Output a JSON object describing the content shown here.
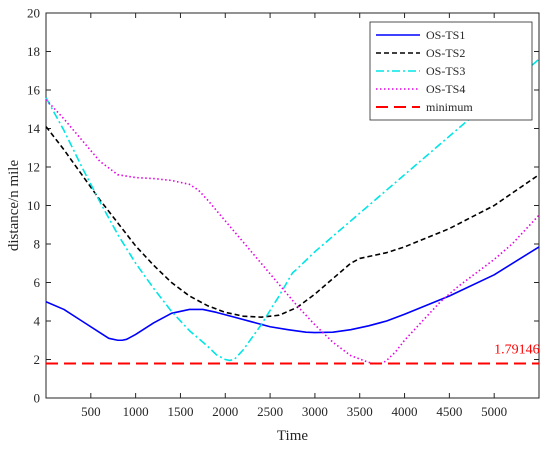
{
  "chart_data": {
    "type": "line",
    "xlabel": "Time",
    "ylabel": "distance/n mile",
    "xlim": [
      0,
      5500
    ],
    "ylim": [
      0,
      20
    ],
    "xticks": [
      500,
      1000,
      1500,
      2000,
      2500,
      3000,
      3500,
      4000,
      4500,
      5000
    ],
    "yticks": [
      0,
      2,
      4,
      6,
      8,
      10,
      12,
      14,
      16,
      18,
      20
    ],
    "grid": false,
    "legend_position": "top-right",
    "series": [
      {
        "name": "OS-TS1",
        "color": "#0000ff",
        "style": "solid",
        "x": [
          0,
          200,
          400,
          600,
          700,
          800,
          850,
          900,
          1000,
          1200,
          1400,
          1600,
          1750,
          1900,
          2100,
          2300,
          2500,
          2700,
          2900,
          3000,
          3200,
          3400,
          3600,
          3800,
          4000,
          4500,
          5000,
          5500
        ],
        "y": [
          5.0,
          4.6,
          4.0,
          3.4,
          3.1,
          3.0,
          3.0,
          3.05,
          3.3,
          3.9,
          4.4,
          4.6,
          4.6,
          4.45,
          4.2,
          3.95,
          3.7,
          3.55,
          3.42,
          3.4,
          3.42,
          3.55,
          3.75,
          4.0,
          4.35,
          5.3,
          6.4,
          7.85
        ]
      },
      {
        "name": "OS-TS2",
        "color": "#000000",
        "style": "dashed",
        "x": [
          0,
          200,
          400,
          600,
          800,
          1000,
          1200,
          1400,
          1600,
          1800,
          2000,
          2200,
          2400,
          2600,
          2800,
          3000,
          3200,
          3400,
          3500,
          3600,
          3800,
          4000,
          4500,
          5000,
          5500
        ],
        "y": [
          14.1,
          12.9,
          11.6,
          10.3,
          9.1,
          7.9,
          6.9,
          6.0,
          5.3,
          4.8,
          4.45,
          4.25,
          4.2,
          4.3,
          4.7,
          5.4,
          6.2,
          7.0,
          7.25,
          7.35,
          7.55,
          7.85,
          8.8,
          10.0,
          11.6
        ]
      },
      {
        "name": "OS-TS3",
        "color": "#00e5e5",
        "style": "dash-dot",
        "x": [
          0,
          200,
          400,
          600,
          800,
          1000,
          1200,
          1400,
          1600,
          1800,
          1900,
          2000,
          2050,
          2100,
          2200,
          2400,
          2600,
          2750,
          2800,
          3000,
          3500,
          4000,
          4500,
          5000,
          5500
        ],
        "y": [
          15.6,
          13.9,
          12.0,
          10.2,
          8.5,
          7.0,
          5.7,
          4.5,
          3.5,
          2.7,
          2.25,
          2.0,
          1.95,
          2.0,
          2.5,
          3.8,
          5.3,
          6.5,
          6.7,
          7.6,
          9.6,
          11.6,
          13.6,
          15.6,
          17.6
        ]
      },
      {
        "name": "OS-TS4",
        "color": "#e600e6",
        "style": "dotted",
        "x": [
          0,
          200,
          400,
          600,
          800,
          1000,
          1200,
          1400,
          1600,
          1700,
          1800,
          2000,
          2200,
          2400,
          2600,
          2800,
          3000,
          3200,
          3400,
          3600,
          3650,
          3700,
          3750,
          3800,
          3900,
          4000,
          4200,
          4400,
          4600,
          4800,
          5000,
          5200,
          5500
        ],
        "y": [
          15.5,
          14.5,
          13.4,
          12.3,
          11.6,
          11.45,
          11.4,
          11.3,
          11.1,
          10.8,
          10.3,
          9.2,
          8.1,
          7.0,
          5.9,
          4.8,
          3.8,
          2.9,
          2.2,
          1.85,
          1.8,
          1.79,
          1.8,
          1.95,
          2.4,
          3.0,
          4.0,
          5.0,
          5.8,
          6.5,
          7.2,
          8.0,
          9.5
        ]
      },
      {
        "name": "minimum",
        "color": "#ff0000",
        "style": "long-dash",
        "x": [
          0,
          5500
        ],
        "y": [
          1.79146,
          1.79146
        ]
      }
    ],
    "annotations": [
      {
        "text": "1.79146",
        "x": 5000,
        "y": 2.3,
        "color": "#ff0000"
      }
    ]
  }
}
